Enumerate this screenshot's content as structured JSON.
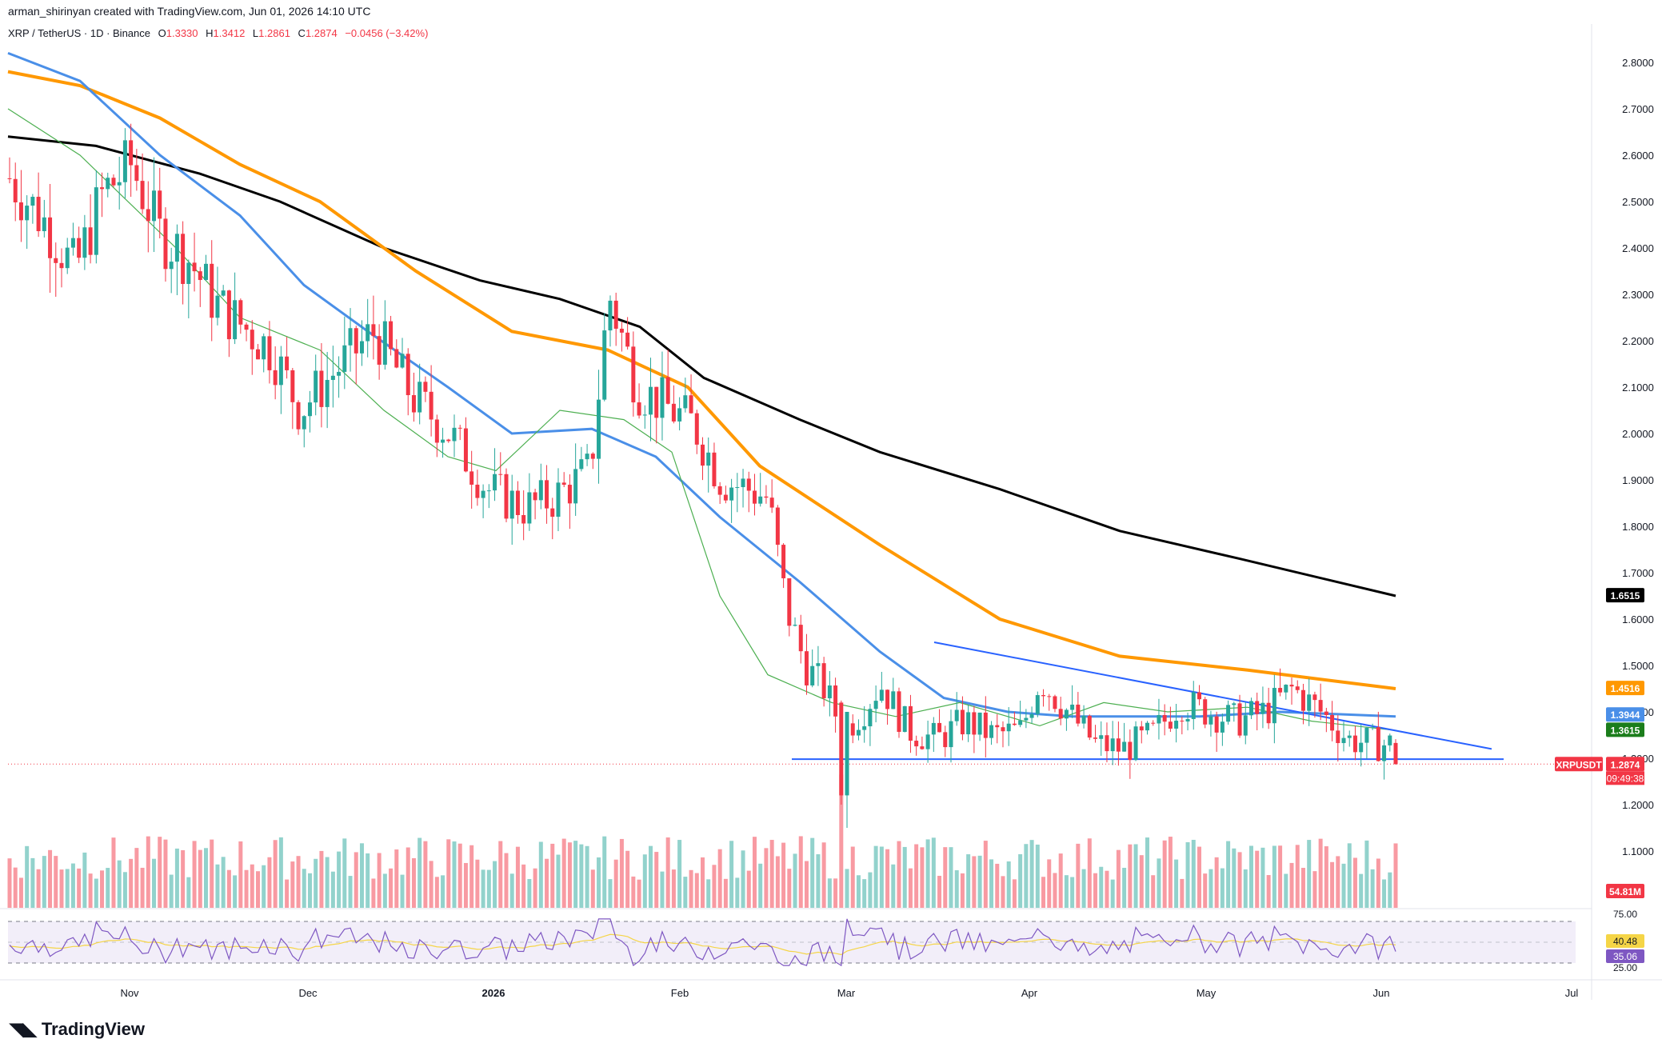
{
  "header": {
    "credit": "arman_shirinyan created with TradingView.com, Jun 01, 2026 14:10 UTC"
  },
  "symbol_line": {
    "pair": "XRP / TetherUS · 1D · Binance",
    "o_label": "O",
    "o": "1.3330",
    "h_label": "H",
    "h": "1.3412",
    "l_label": "L",
    "l": "1.2861",
    "c_label": "C",
    "c": "1.2874",
    "change": "−0.0456 (−3.42%)"
  },
  "footer": {
    "brand": "TradingView"
  },
  "colors": {
    "up": "#26a69a",
    "down": "#f23645",
    "ma_black": "#000000",
    "ma_orange": "#ff9800",
    "ma_blue": "#4a8fe8",
    "ma_green": "#4caf50",
    "trendline": "#2962ff",
    "rsi_line": "#7e57c2",
    "rsi_ma": "#f5d547"
  },
  "chart_data": {
    "type": "candlestick",
    "symbol": "XRPUSDT",
    "y_ticks": [
      "2.8000",
      "2.7000",
      "2.6000",
      "2.5000",
      "2.4000",
      "2.3000",
      "2.2000",
      "2.1000",
      "2.0000",
      "1.9000",
      "1.8000",
      "1.7000",
      "1.6000",
      "1.5000",
      "1.4000",
      "1.3000",
      "1.2000",
      "1.1000"
    ],
    "x_ticks": [
      "Nov",
      "Dec",
      "2026",
      "Feb",
      "Mar",
      "Apr",
      "May",
      "Jun",
      "Jul"
    ],
    "price_labels": [
      {
        "value": "1.6515",
        "color": "#000000"
      },
      {
        "value": "1.4516",
        "color": "#ff9800"
      },
      {
        "value": "1.3944",
        "color": "#4a8fe8"
      },
      {
        "value": "1.3615",
        "color": "#1b7d1b"
      },
      {
        "value": "1.2874",
        "color": "#f23645"
      }
    ],
    "last_price_tag": "XRPUSDT",
    "countdown": "09:49:38",
    "volume_label": "54.81M",
    "rsi": {
      "upper": "75.00",
      "lower": "25.00",
      "ma_value": "40.48",
      "value": "35.06"
    },
    "y_range": [
      1.0,
      2.9
    ]
  }
}
